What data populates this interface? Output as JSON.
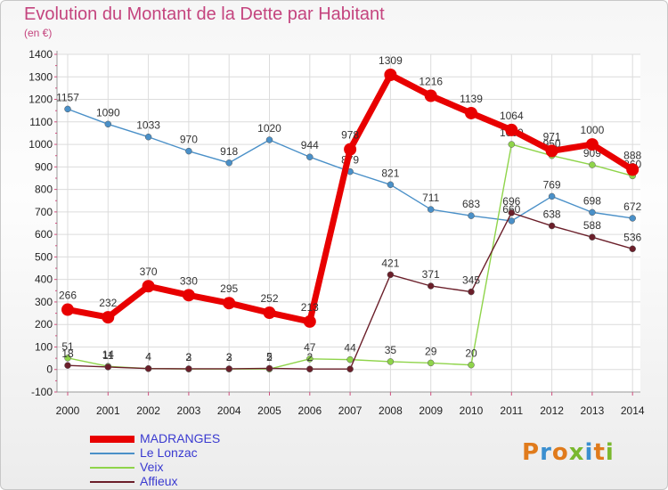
{
  "title": "Evolution du Montant de la Dette par Habitant",
  "subtitle": "(en €)",
  "logo": {
    "text": "Proxiti",
    "colors": [
      "#e07b1c",
      "#3a8fd0",
      "#e07b1c",
      "#7ab82e",
      "#3a8fd0",
      "#e07b1c",
      "#7ab82e"
    ]
  },
  "chart_data": {
    "type": "line",
    "x": [
      "2000",
      "2001",
      "2002",
      "2003",
      "2004",
      "2005",
      "2006",
      "2007",
      "2008",
      "2009",
      "2010",
      "2011",
      "2012",
      "2013",
      "2014"
    ],
    "ylim": [
      -100,
      1400
    ],
    "yticks": [
      "-100",
      "0",
      "100",
      "200",
      "300",
      "400",
      "500",
      "600",
      "700",
      "800",
      "900",
      "1000",
      "1100",
      "1200",
      "1300",
      "1400"
    ],
    "grid": true,
    "legend_position": "bottom-left",
    "series": [
      {
        "name": "Le Lonzac",
        "color": "#4a90c8",
        "values": [
          1157,
          1090,
          1033,
          970,
          918,
          1020,
          944,
          879,
          821,
          711,
          683,
          660,
          769,
          698,
          672
        ],
        "labels": [
          "1157",
          "1090",
          "1033",
          "970",
          "918",
          "1020",
          "944",
          "879",
          "821",
          "711",
          "683",
          "660",
          "769",
          "698",
          "672"
        ]
      },
      {
        "name": "Veix",
        "color": "#8fd44a",
        "values": [
          51,
          14,
          4,
          2,
          2,
          2,
          47,
          44,
          35,
          29,
          20,
          1000,
          950,
          909,
          860
        ],
        "labels": [
          "51",
          "14",
          "4",
          "2",
          "2",
          "2",
          "47",
          "44",
          "35",
          "29",
          "20",
          "1000",
          "950",
          "909",
          "860"
        ]
      },
      {
        "name": "Affieux",
        "color": "#6b1f2a",
        "values": [
          18,
          11,
          4,
          3,
          3,
          5,
          2,
          2,
          421,
          371,
          345,
          696,
          638,
          588,
          536
        ],
        "labels": [
          "18",
          "11",
          "4",
          "3",
          "3",
          "5",
          "2",
          "",
          "421",
          "371",
          "345",
          "696",
          "638",
          "588",
          "536"
        ]
      },
      {
        "name": "MADRANGES",
        "color": "#e80000",
        "values": [
          266,
          232,
          370,
          330,
          295,
          252,
          213,
          978,
          1309,
          1216,
          1139,
          1064,
          971,
          1000,
          888
        ],
        "labels": [
          "266",
          "232",
          "370",
          "330",
          "295",
          "252",
          "213",
          "978",
          "1309",
          "1216",
          "1139",
          "1064",
          "971",
          "1000",
          "888"
        ]
      }
    ],
    "legend_order": [
      "MADRANGES",
      "Le Lonzac",
      "Veix",
      "Affieux"
    ]
  }
}
